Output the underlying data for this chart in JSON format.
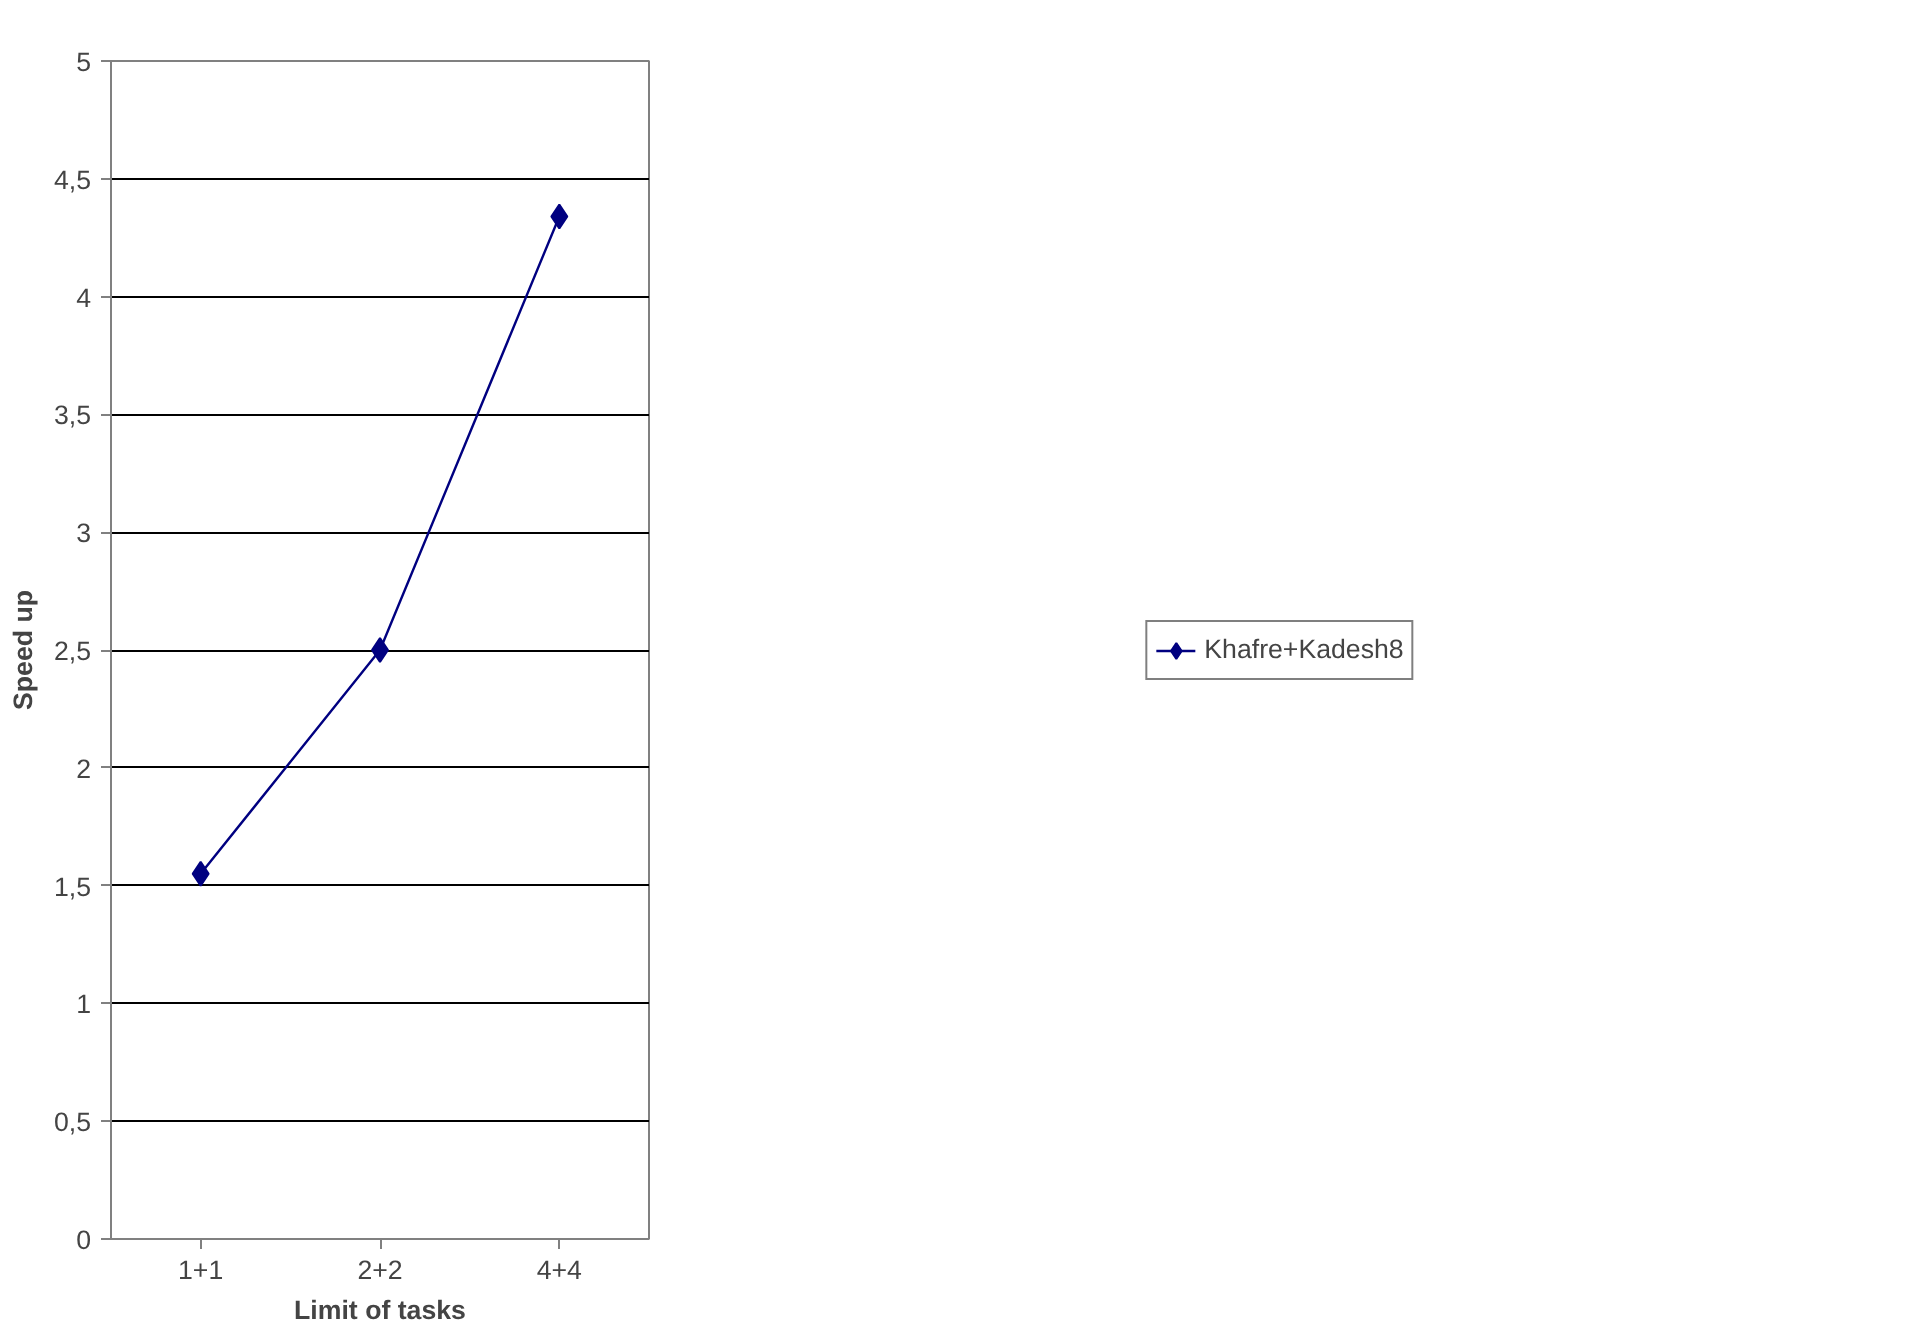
{
  "chart_data": {
    "type": "line",
    "xlabel": "Limit of tasks",
    "ylabel": "Speed up",
    "categories": [
      "1+1",
      "2+2",
      "4+4"
    ],
    "series": [
      {
        "name": "Khafre+Kadesh8",
        "color": "#000080",
        "values": [
          1.55,
          2.5,
          4.34
        ]
      }
    ],
    "ylim": [
      0,
      5
    ],
    "yticks": [
      0,
      {
        "value": 0.5,
        "label": "0,5"
      },
      1,
      {
        "value": 1.5,
        "label": "1,5"
      },
      2,
      {
        "value": 2.5,
        "label": "2,5"
      },
      3,
      {
        "value": 3.5,
        "label": "3,5"
      },
      4,
      {
        "value": 4.5,
        "label": "4,5"
      },
      5
    ],
    "grid": "y",
    "legend": "right",
    "marker": "diamond",
    "line_style": "solid"
  }
}
